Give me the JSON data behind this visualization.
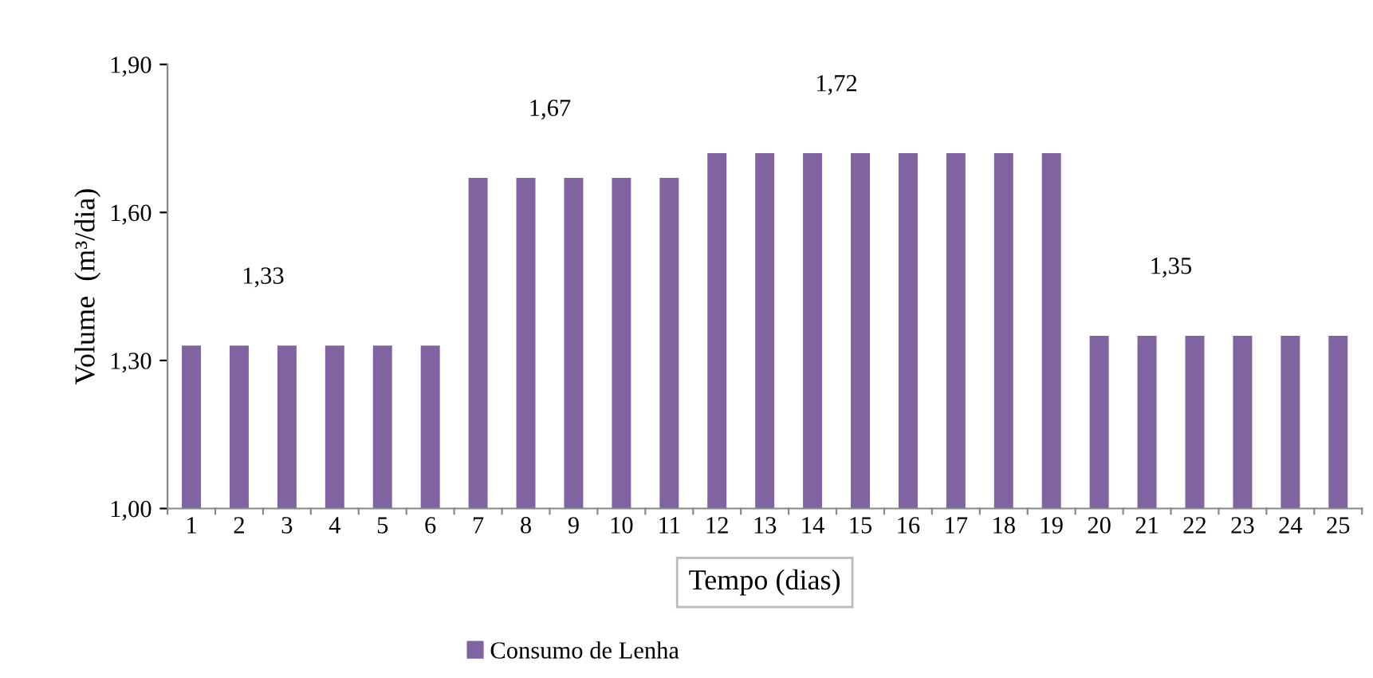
{
  "chart_data": {
    "type": "bar",
    "xlabel": "Tempo (dias)",
    "ylabel": "Volume  (m³/dia)",
    "categories": [
      "1",
      "2",
      "3",
      "4",
      "5",
      "6",
      "7",
      "8",
      "9",
      "10",
      "11",
      "12",
      "13",
      "14",
      "15",
      "16",
      "17",
      "18",
      "19",
      "20",
      "21",
      "22",
      "23",
      "24",
      "25"
    ],
    "series": [
      {
        "name": "Consumo de Lenha",
        "color": "#8064a2",
        "values": [
          1.33,
          1.33,
          1.33,
          1.33,
          1.33,
          1.33,
          1.67,
          1.67,
          1.67,
          1.67,
          1.67,
          1.72,
          1.72,
          1.72,
          1.72,
          1.72,
          1.72,
          1.72,
          1.72,
          1.35,
          1.35,
          1.35,
          1.35,
          1.35,
          1.35
        ]
      }
    ],
    "ylim": [
      1.0,
      1.9
    ],
    "yticks": [
      {
        "value": 1.0,
        "label": "1,00"
      },
      {
        "value": 1.3,
        "label": "1,30"
      },
      {
        "value": 1.6,
        "label": "1,60"
      },
      {
        "value": 1.9,
        "label": "1,90"
      }
    ],
    "annotations": [
      {
        "text": "1,33",
        "x": "3",
        "y": 1.33
      },
      {
        "text": "1,67",
        "x": "9",
        "y": 1.67
      },
      {
        "text": "1,72",
        "x": "15",
        "y": 1.72
      },
      {
        "text": "1,35",
        "x": "22",
        "y": 1.35
      }
    ],
    "grid": false,
    "legend": "bottom"
  }
}
